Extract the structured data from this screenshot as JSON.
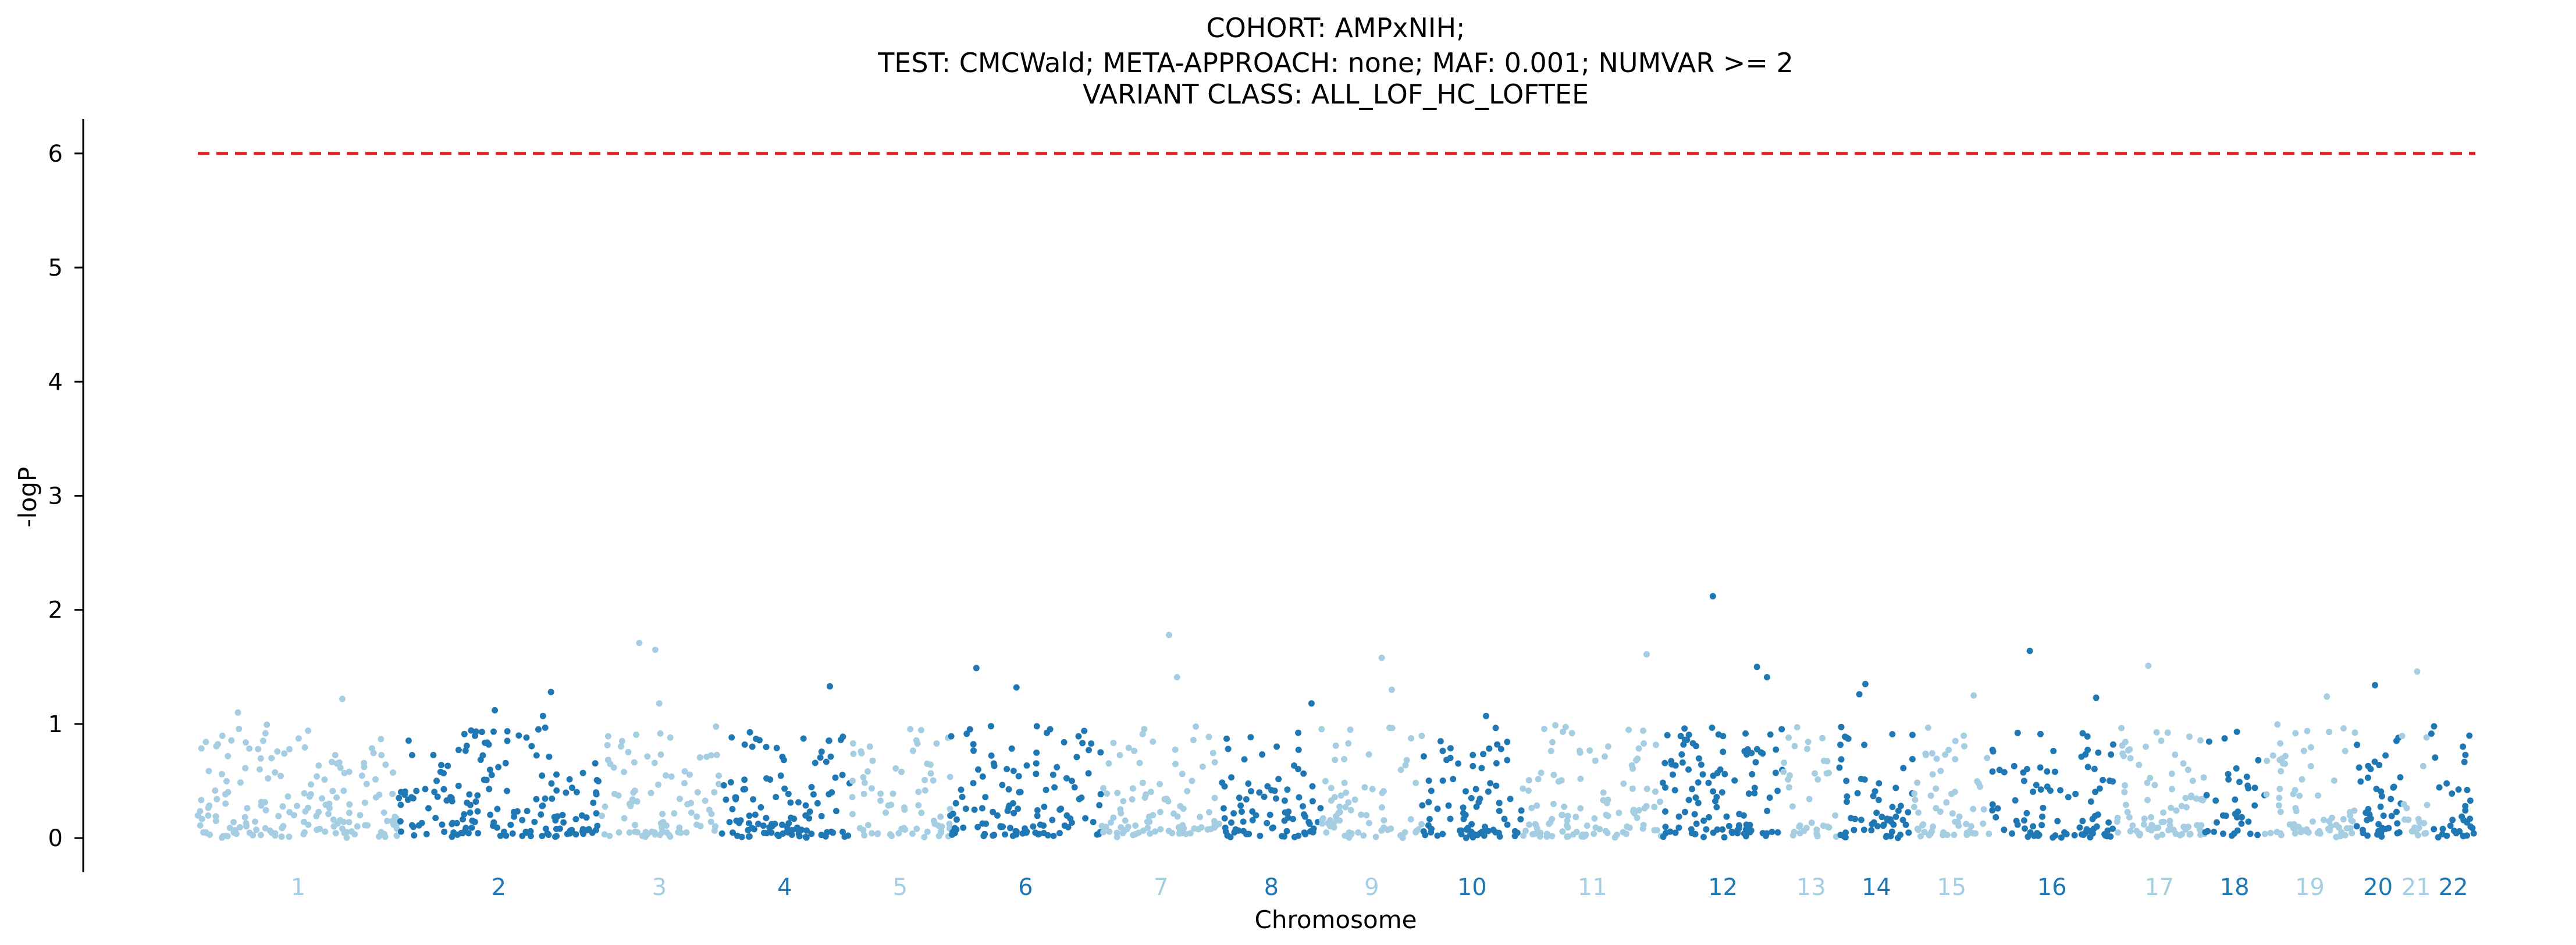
{
  "chart_data": {
    "type": "scatter",
    "title_lines": [
      "COHORT: AMPxNIH;",
      "TEST: CMCWald; META-APPROACH: none; MAF: 0.001; NUMVAR >= 2",
      "VARIANT CLASS: ALL_LOF_HC_LOFTEE"
    ],
    "xlabel": "Chromosome",
    "ylabel": "-logP",
    "ylim": [
      -0.3,
      6.3
    ],
    "yticks": [
      0,
      1,
      2,
      3,
      4,
      5,
      6
    ],
    "threshold": 6,
    "grid": false,
    "legend": "none",
    "colors": {
      "light": "#a6cee3",
      "dark": "#1f78b4",
      "threshold": "#e31a1c"
    },
    "chromosomes": [
      {
        "label": "1",
        "start": 0,
        "end": 100,
        "points": 170
      },
      {
        "label": "2",
        "start": 100,
        "end": 200,
        "points": 165
      },
      {
        "label": "3",
        "start": 200,
        "end": 260,
        "points": 90
      },
      {
        "label": "4",
        "start": 260,
        "end": 325,
        "points": 110
      },
      {
        "label": "5",
        "start": 325,
        "end": 375,
        "points": 70
      },
      {
        "label": "6",
        "start": 375,
        "end": 450,
        "points": 120
      },
      {
        "label": "7",
        "start": 450,
        "end": 510,
        "points": 95
      },
      {
        "label": "8",
        "start": 510,
        "end": 560,
        "points": 80
      },
      {
        "label": "9",
        "start": 560,
        "end": 610,
        "points": 70
      },
      {
        "label": "10",
        "start": 610,
        "end": 660,
        "points": 80
      },
      {
        "label": "11",
        "start": 660,
        "end": 730,
        "points": 110
      },
      {
        "label": "12",
        "start": 730,
        "end": 790,
        "points": 110
      },
      {
        "label": "13",
        "start": 790,
        "end": 818,
        "points": 35
      },
      {
        "label": "14",
        "start": 818,
        "end": 855,
        "points": 60
      },
      {
        "label": "15",
        "start": 855,
        "end": 893,
        "points": 60
      },
      {
        "label": "16",
        "start": 893,
        "end": 955,
        "points": 90
      },
      {
        "label": "17",
        "start": 955,
        "end": 1000,
        "points": 85
      },
      {
        "label": "18",
        "start": 1000,
        "end": 1030,
        "points": 35
      },
      {
        "label": "19",
        "start": 1030,
        "end": 1075,
        "points": 75
      },
      {
        "label": "20",
        "start": 1075,
        "end": 1098,
        "points": 45
      },
      {
        "label": "21",
        "start": 1098,
        "end": 1113,
        "points": 20
      },
      {
        "label": "22",
        "start": 1113,
        "end": 1135,
        "points": 35
      }
    ],
    "highlights": [
      {
        "chr": "1",
        "pos": 20,
        "value": 1.1
      },
      {
        "chr": "1",
        "pos": 72,
        "value": 1.22
      },
      {
        "chr": "2",
        "pos": 48,
        "value": 1.12
      },
      {
        "chr": "2",
        "pos": 72,
        "value": 1.07
      },
      {
        "chr": "2",
        "pos": 76,
        "value": 1.28
      },
      {
        "chr": "3",
        "pos": 20,
        "value": 1.71
      },
      {
        "chr": "3",
        "pos": 28,
        "value": 1.65
      },
      {
        "chr": "3",
        "pos": 30,
        "value": 1.18
      },
      {
        "chr": "4",
        "pos": 55,
        "value": 1.33
      },
      {
        "chr": "6",
        "pos": 13,
        "value": 1.49
      },
      {
        "chr": "6",
        "pos": 33,
        "value": 1.32
      },
      {
        "chr": "7",
        "pos": 34,
        "value": 1.78
      },
      {
        "chr": "7",
        "pos": 38,
        "value": 1.41
      },
      {
        "chr": "8",
        "pos": 45,
        "value": 1.18
      },
      {
        "chr": "9",
        "pos": 30,
        "value": 1.58
      },
      {
        "chr": "9",
        "pos": 35,
        "value": 1.3
      },
      {
        "chr": "10",
        "pos": 32,
        "value": 1.07
      },
      {
        "chr": "11",
        "pos": 62,
        "value": 1.61
      },
      {
        "chr": "12",
        "pos": 25,
        "value": 2.12
      },
      {
        "chr": "12",
        "pos": 47,
        "value": 1.5
      },
      {
        "chr": "12",
        "pos": 52,
        "value": 1.41
      },
      {
        "chr": "14",
        "pos": 10,
        "value": 1.26
      },
      {
        "chr": "14",
        "pos": 13,
        "value": 1.35
      },
      {
        "chr": "15",
        "pos": 30,
        "value": 1.25
      },
      {
        "chr": "16",
        "pos": 20,
        "value": 1.64
      },
      {
        "chr": "16",
        "pos": 53,
        "value": 1.23
      },
      {
        "chr": "17",
        "pos": 17,
        "value": 1.51
      },
      {
        "chr": "19",
        "pos": 31,
        "value": 1.24
      },
      {
        "chr": "20",
        "pos": 10,
        "value": 1.34
      },
      {
        "chr": "21",
        "pos": 8,
        "value": 1.46
      }
    ]
  }
}
